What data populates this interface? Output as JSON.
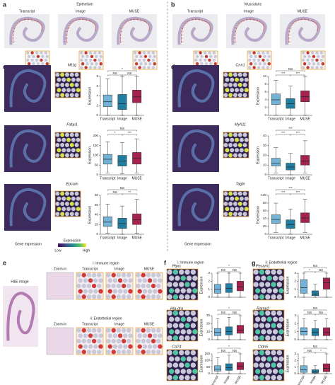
{
  "panels": {
    "a": {
      "letter": "a",
      "title": "Epithelium",
      "labels": [
        "Transcript",
        "Image",
        "MUSE"
      ]
    },
    "b": {
      "letter": "b",
      "title": "Muscularis",
      "labels": [
        "Transcript",
        "Image",
        "MUSE"
      ]
    },
    "c": {
      "letter": "c",
      "caption": "Gene expression"
    },
    "d": {
      "letter": "d",
      "caption": "Gene expression"
    },
    "legend": {
      "title": "Expression",
      "low": "Low",
      "high": "High"
    },
    "e": {
      "letter": "e",
      "he_label": "H&E image",
      "regions": [
        {
          "title": "i: Immune region",
          "labels": [
            "Zoom-in",
            "Transcript",
            "Image",
            "MUSE"
          ]
        },
        {
          "title": "ii: Endothelial region",
          "labels": [
            "Zoom-in",
            "Transcript",
            "Image",
            "MUSE"
          ]
        }
      ]
    },
    "f": {
      "letter": "f",
      "title": "i: Immune region"
    },
    "g": {
      "letter": "g",
      "title": "ii: Endothelial region"
    }
  },
  "chart_data": [
    {
      "type": "box",
      "title": "Mt1g",
      "y_label": "Expression",
      "categories": [
        "Transcript",
        "Image",
        "MUSE"
      ],
      "colors": [
        "#74b3d8",
        "#1f7ea1",
        "#a3224f"
      ],
      "ylim": [
        0,
        8
      ],
      "yticks": [
        0,
        2,
        4,
        6,
        8
      ],
      "values": [
        [
          0,
          1.8,
          2.8,
          4.2,
          7.5
        ],
        [
          0,
          1.2,
          2.4,
          4.3,
          8
        ],
        [
          0,
          2.6,
          3.8,
          5.2,
          8
        ]
      ],
      "annotations": [
        "NS",
        "NS",
        "*"
      ]
    },
    {
      "type": "box",
      "title": "Fabp1",
      "y_label": "Expression",
      "categories": [
        "Transcript",
        "Image",
        "MUSE"
      ],
      "colors": [
        "#74b3d8",
        "#1f7ea1",
        "#a3224f"
      ],
      "ylim": [
        0,
        200
      ],
      "yticks": [
        0,
        50,
        100,
        150,
        200
      ],
      "values": [
        [
          10,
          55,
          80,
          105,
          170
        ],
        [
          5,
          45,
          70,
          100,
          165
        ],
        [
          10,
          55,
          85,
          115,
          185
        ]
      ],
      "annotations": [
        "*",
        "***",
        "NS"
      ]
    },
    {
      "type": "box",
      "title": "Epcam",
      "y_label": "Expression",
      "categories": [
        "Transcript",
        "Image",
        "MUSE"
      ],
      "colors": [
        "#74b3d8",
        "#1f7ea1",
        "#a3224f"
      ],
      "ylim": [
        0,
        80
      ],
      "yticks": [
        0,
        20,
        40,
        60,
        80
      ],
      "values": [
        [
          2,
          16,
          25,
          36,
          62
        ],
        [
          0,
          12,
          22,
          33,
          58
        ],
        [
          2,
          20,
          30,
          42,
          72
        ]
      ],
      "annotations": [
        "NS",
        "**",
        "NS"
      ]
    },
    {
      "type": "box",
      "title": "Cnn1",
      "y_label": "Expression",
      "categories": [
        "Transcript",
        "Image",
        "MUSE"
      ],
      "colors": [
        "#74b3d8",
        "#1f7ea1",
        "#a3224f"
      ],
      "ylim": [
        0,
        10
      ],
      "yticks": [
        0,
        2,
        4,
        6,
        8,
        10
      ],
      "values": [
        [
          0,
          2.8,
          4,
          5.5,
          9
        ],
        [
          0,
          1.8,
          3,
          4.3,
          7.5
        ],
        [
          0,
          3.5,
          4.8,
          6.3,
          10
        ]
      ],
      "annotations": [
        "***",
        "***",
        "NS"
      ]
    },
    {
      "type": "box",
      "title": "Myh11",
      "y_label": "Expression",
      "categories": [
        "Transcript",
        "Image",
        "MUSE"
      ],
      "colors": [
        "#74b3d8",
        "#1f7ea1",
        "#a3224f"
      ],
      "ylim": [
        0,
        40
      ],
      "yticks": [
        0,
        10,
        20,
        30,
        40
      ],
      "values": [
        [
          2,
          9,
          12,
          17,
          28
        ],
        [
          0,
          5,
          8,
          12,
          22
        ],
        [
          2,
          10,
          14,
          20,
          35
        ]
      ],
      "annotations": [
        "***",
        "***",
        "***"
      ]
    },
    {
      "type": "box",
      "title": "Tagln",
      "y_label": "Expression",
      "categories": [
        "Transcript",
        "Image",
        "MUSE"
      ],
      "colors": [
        "#74b3d8",
        "#1f7ea1",
        "#a3224f"
      ],
      "ylim": [
        0,
        100
      ],
      "yticks": [
        0,
        20,
        40,
        60,
        80,
        100
      ],
      "values": [
        [
          5,
          28,
          38,
          50,
          80
        ],
        [
          0,
          15,
          25,
          37,
          65
        ],
        [
          5,
          30,
          42,
          55,
          90
        ]
      ],
      "annotations": [
        "***",
        "***",
        "***"
      ]
    },
    {
      "type": "box",
      "title": "Ptprc",
      "y_label": "Expression",
      "colors": [
        "#74b3d8",
        "#1f7ea1",
        "#a3224f"
      ],
      "ylim": [
        0,
        3
      ],
      "yticks": [
        0,
        1,
        2,
        3
      ],
      "values": [
        [
          0,
          0.5,
          1,
          1.6,
          3
        ],
        [
          0,
          0.6,
          1.1,
          1.7,
          3
        ],
        [
          0,
          0.8,
          1.3,
          2,
          3
        ]
      ],
      "annotations": [
        "NS",
        "NS",
        "*"
      ]
    },
    {
      "type": "box",
      "title": "Hla-dra",
      "y_label": "Expression",
      "colors": [
        "#74b3d8",
        "#1f7ea1",
        "#a3224f"
      ],
      "ylim": [
        0,
        30
      ],
      "yticks": [
        0,
        10,
        20,
        30
      ],
      "values": [
        [
          0,
          5,
          9,
          14,
          26
        ],
        [
          0,
          6,
          10,
          16,
          28
        ],
        [
          0,
          8,
          12,
          18,
          30
        ]
      ],
      "annotations": [
        "NS",
        "NS",
        "*"
      ]
    },
    {
      "type": "box",
      "title": "Cd74",
      "y_label": "Expression",
      "categories": [
        "Transcript",
        "Image",
        "MUSE"
      ],
      "colors": [
        "#74b3d8",
        "#1f7ea1",
        "#a3224f"
      ],
      "ylim": [
        0,
        150
      ],
      "yticks": [
        0,
        50,
        100,
        150
      ],
      "values": [
        [
          0,
          20,
          35,
          60,
          120
        ],
        [
          0,
          25,
          45,
          75,
          140
        ],
        [
          0,
          30,
          55,
          85,
          150
        ]
      ],
      "annotations": [
        "NS",
        "NS",
        "*"
      ]
    },
    {
      "type": "box",
      "title": "Pecam1",
      "y_label": "Expression",
      "colors": [
        "#74b3d8",
        "#1f7ea1",
        "#a3224f"
      ],
      "ylim": [
        0,
        3
      ],
      "yticks": [
        0,
        1,
        2,
        3
      ],
      "values": [
        [
          0,
          0.5,
          1.2,
          2.2,
          3
        ],
        [
          0,
          0.2,
          0.4,
          0.8,
          1.6
        ],
        [
          0,
          1,
          1.8,
          2.4,
          3
        ]
      ],
      "annotations": [
        "*",
        "NS",
        "NS"
      ]
    },
    {
      "type": "box",
      "title": "Ramp2",
      "y_label": "Expression",
      "colors": [
        "#74b3d8",
        "#1f7ea1",
        "#a3224f"
      ],
      "ylim": [
        0,
        3
      ],
      "yticks": [
        0,
        1,
        2,
        3
      ],
      "values": [
        [
          0,
          0.6,
          1,
          1.5,
          2.6
        ],
        [
          0,
          0.5,
          0.9,
          1.4,
          2.4
        ],
        [
          0,
          0.5,
          0.9,
          1.5,
          2.6
        ]
      ],
      "annotations": [
        "NS",
        "NS",
        "NS"
      ]
    },
    {
      "type": "box",
      "title": "Cldn5",
      "y_label": "Expression",
      "categories": [
        "Transcript",
        "Image",
        "MUSE"
      ],
      "colors": [
        "#74b3d8",
        "#1f7ea1",
        "#a3224f"
      ],
      "ylim": [
        0,
        3
      ],
      "yticks": [
        0,
        1,
        2,
        3
      ],
      "values": [
        [
          0,
          0.2,
          0.6,
          1.2,
          2.5
        ],
        [
          0,
          0.1,
          0.3,
          0.6,
          1.2
        ],
        [
          0,
          0.3,
          0.8,
          1.5,
          3
        ]
      ],
      "annotations": [
        "NS",
        "*",
        "NS"
      ]
    }
  ]
}
